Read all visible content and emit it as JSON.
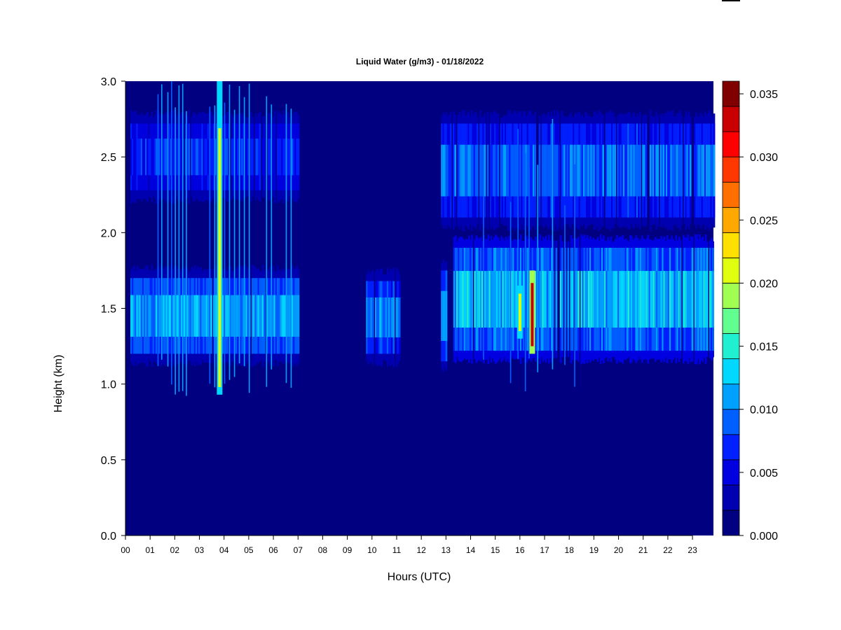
{
  "chart_data": {
    "type": "heatmap",
    "title": "Liquid Water (g/m3) - 01/18/2022",
    "xlabel": "Hours (UTC)",
    "ylabel": "Height (km)",
    "x_ticks": [
      "00",
      "01",
      "02",
      "03",
      "04",
      "05",
      "06",
      "07",
      "08",
      "09",
      "10",
      "11",
      "12",
      "13",
      "14",
      "15",
      "16",
      "17",
      "18",
      "19",
      "20",
      "21",
      "22",
      "23"
    ],
    "xlim": [
      0,
      23.85
    ],
    "y_ticks": [
      "0.0",
      "0.5",
      "1.0",
      "1.5",
      "2.0",
      "2.5",
      "3.0"
    ],
    "ylim": [
      0.0,
      3.0
    ],
    "colorbar": {
      "ticks": [
        "0.000",
        "0.005",
        "0.010",
        "0.015",
        "0.020",
        "0.025",
        "0.030",
        "0.035"
      ],
      "range": [
        0.0,
        0.036
      ],
      "colors": [
        "#000080",
        "#0000b0",
        "#0000e0",
        "#0020ff",
        "#0060ff",
        "#00a0ff",
        "#00d8ff",
        "#20f0d0",
        "#60ff90",
        "#a0ff50",
        "#e0ff10",
        "#ffe000",
        "#ffa800",
        "#ff7000",
        "#ff3800",
        "#ff0000",
        "#c80000",
        "#800000"
      ]
    },
    "cloud_layers": [
      {
        "t0": 0.2,
        "t1": 7.0,
        "base": 1.2,
        "top": 1.7,
        "value": 0.011
      },
      {
        "t0": 0.2,
        "t1": 7.0,
        "base": 2.28,
        "top": 2.72,
        "value": 0.007
      },
      {
        "t0": 9.7,
        "t1": 11.1,
        "base": 1.2,
        "top": 1.68,
        "value": 0.01
      },
      {
        "t0": 12.8,
        "t1": 13.0,
        "base": 1.15,
        "top": 1.75,
        "value": 0.01
      },
      {
        "t0": 13.3,
        "t1": 23.85,
        "base": 1.22,
        "top": 1.9,
        "value": 0.012
      },
      {
        "t0": 12.8,
        "t1": 23.85,
        "base": 2.1,
        "top": 2.72,
        "value": 0.009
      }
    ],
    "hot_spots": [
      {
        "t": 3.82,
        "h0": 0.93,
        "h1": 3.0,
        "value": 0.02
      },
      {
        "t": 16.5,
        "h0": 1.2,
        "h1": 1.75,
        "value": 0.032
      },
      {
        "t": 16.0,
        "h0": 1.3,
        "h1": 1.65,
        "value": 0.021
      }
    ]
  }
}
